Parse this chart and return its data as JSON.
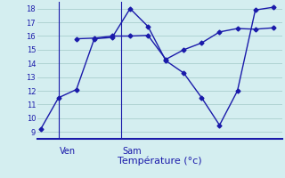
{
  "line1_x": [
    0,
    1,
    2,
    3,
    4,
    5,
    6,
    7,
    8,
    9,
    10,
    11,
    12,
    13
  ],
  "line1_y": [
    9.2,
    11.5,
    12.1,
    15.8,
    15.9,
    18.0,
    16.7,
    14.2,
    13.3,
    11.5,
    9.5,
    12.0,
    17.9,
    18.1
  ],
  "line2_x": [
    2,
    3,
    4,
    5,
    6,
    7,
    8,
    9,
    10,
    11,
    12,
    13
  ],
  "line2_y": [
    15.8,
    15.85,
    16.0,
    16.0,
    16.05,
    14.3,
    15.0,
    15.5,
    16.3,
    16.55,
    16.5,
    16.6
  ],
  "line_color": "#1a1aaa",
  "bg_color": "#d4eef0",
  "grid_color": "#aacece",
  "ylim": [
    8.5,
    18.5
  ],
  "yticks": [
    9,
    10,
    11,
    12,
    13,
    14,
    15,
    16,
    17,
    18
  ],
  "xlim": [
    -0.2,
    13.5
  ],
  "vline1_x": 1.0,
  "vline2_x": 4.5,
  "ven_x": 1.05,
  "sam_x": 4.55,
  "xlabel": "Température (°c)",
  "marker": "D",
  "markersize": 2.5,
  "linewidth": 1.0
}
